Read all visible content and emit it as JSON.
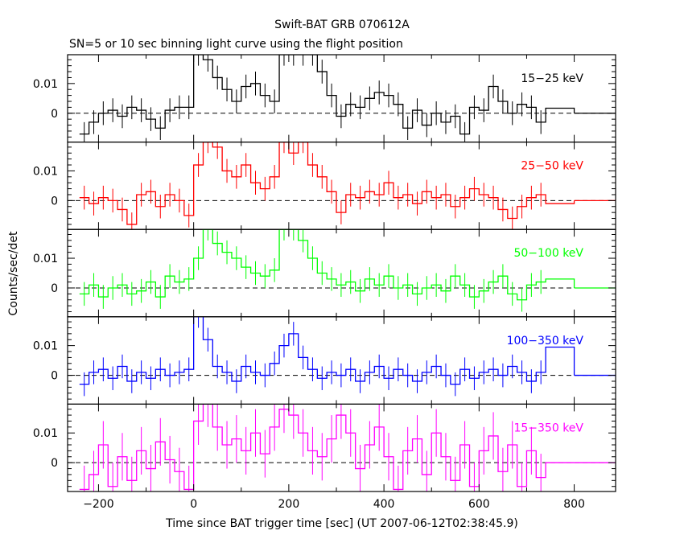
{
  "chart_data": {
    "type": "line",
    "title": "Swift-BAT GRB 070612A",
    "subtitle": "SN=5 or 10 sec binning light curve using the flight position",
    "xlabel": "Time since BAT trigger time [sec] (UT 2007-06-12T02:38:45.9)",
    "ylabel": "Counts/sec/det",
    "xlim": [
      -265,
      887
    ],
    "ylim": [
      -0.0097,
      0.0197
    ],
    "xticks": [
      -200,
      0,
      200,
      400,
      600,
      800
    ],
    "xtick_labels": [
      "−200",
      "0",
      "200",
      "400",
      "600",
      "800"
    ],
    "yticks": [
      0,
      0.01
    ],
    "ytick_labels": [
      "0",
      "0.01"
    ],
    "bin_start": -240,
    "bin_width": 20,
    "series": [
      {
        "name": "15−25 keV",
        "color": "#000000",
        "error": 0.004,
        "values": [
          -0.007,
          -0.003,
          0,
          0.001,
          -0.001,
          0.002,
          0.001,
          -0.002,
          -0.005,
          0.001,
          0.002,
          0.002,
          0.02,
          0.018,
          0.012,
          0.008,
          0.004,
          0.009,
          0.01,
          0.006,
          0.004,
          0.02,
          0.02,
          0.02,
          0.02,
          0.014,
          0.006,
          -0.001,
          0.003,
          0.002,
          0.005,
          0.007,
          0.006,
          0.003,
          -0.005,
          0.001,
          -0.004,
          0,
          -0.003,
          -0.001,
          -0.007,
          0.002,
          0.001,
          0.009,
          0.004,
          0,
          0.003,
          0.002,
          -0.003
        ],
        "tail": {
          "from": 740,
          "to": 800,
          "value": 0.0017
        }
      },
      {
        "name": "25−50 keV",
        "color": "#ff0000",
        "error": 0.004,
        "values": [
          0.001,
          -0.001,
          0.001,
          0,
          -0.003,
          -0.008,
          0.002,
          0.003,
          -0.002,
          0.002,
          0,
          -0.005,
          0.012,
          0.02,
          0.018,
          0.01,
          0.008,
          0.012,
          0.006,
          0.004,
          0.008,
          0.02,
          0.016,
          0.02,
          0.012,
          0.008,
          0.003,
          -0.004,
          0.002,
          0.001,
          0.003,
          0.002,
          0.006,
          0.001,
          0.002,
          -0.001,
          0.003,
          0.001,
          0.002,
          -0.002,
          0.001,
          0.004,
          0.002,
          0.001,
          -0.003,
          -0.006,
          -0.002,
          0.001,
          0.002
        ],
        "tail": {
          "from": 740,
          "to": 800,
          "value": -0.001
        }
      },
      {
        "name": "50−100 keV",
        "color": "#00ff00",
        "error": 0.004,
        "values": [
          -0.002,
          0.001,
          -0.003,
          0,
          0.001,
          -0.002,
          -0.001,
          0.002,
          -0.003,
          0.004,
          0.002,
          0.003,
          0.01,
          0.02,
          0.015,
          0.012,
          0.01,
          0.007,
          0.005,
          0.004,
          0.006,
          0.02,
          0.02,
          0.016,
          0.01,
          0.005,
          0.003,
          0.001,
          0.002,
          -0.001,
          0.003,
          0.001,
          0.004,
          0,
          0.001,
          -0.002,
          0,
          0.001,
          -0.001,
          0.004,
          0.001,
          -0.003,
          -0.001,
          0.002,
          0.004,
          -0.002,
          -0.004,
          0.001,
          0.002
        ],
        "tail": {
          "from": 740,
          "to": 800,
          "value": 0.003
        }
      },
      {
        "name": "100−350 keV",
        "color": "#0000ff",
        "error": 0.004,
        "values": [
          -0.003,
          0.001,
          0.002,
          -0.001,
          0.003,
          -0.002,
          0.001,
          -0.001,
          0.002,
          0,
          0.001,
          0.002,
          0.02,
          0.012,
          0.003,
          0.001,
          -0.002,
          0.003,
          0.001,
          0,
          0.004,
          0.01,
          0.014,
          0.006,
          0.002,
          -0.001,
          0.001,
          0,
          0.002,
          -0.002,
          0.001,
          0.003,
          -0.001,
          0.002,
          0,
          -0.002,
          0.001,
          0.003,
          0,
          -0.003,
          0.002,
          -0.001,
          0.001,
          0.002,
          0,
          0.003,
          0.001,
          -0.002,
          0.001
        ],
        "tail": {
          "from": 740,
          "to": 800,
          "value": 0.0095
        }
      },
      {
        "name": "15−350 keV",
        "color": "#ff00ff",
        "error": 0.008,
        "values": [
          -0.009,
          -0.004,
          0.006,
          -0.008,
          0.002,
          -0.006,
          0.004,
          -0.002,
          0.007,
          0.001,
          -0.003,
          -0.009,
          0.014,
          0.02,
          0.012,
          0.006,
          0.008,
          0.004,
          0.01,
          0.003,
          0.012,
          0.018,
          0.016,
          0.01,
          0.004,
          0.002,
          0.008,
          0.016,
          0.01,
          -0.002,
          0.006,
          0.012,
          0.002,
          -0.009,
          0.004,
          0.008,
          -0.004,
          0.01,
          0.002,
          -0.006,
          0.006,
          -0.008,
          0.004,
          0.009,
          -0.003,
          0.006,
          -0.008,
          0.004,
          -0.005
        ],
        "tail": {
          "from": 740,
          "to": 800,
          "value": 0.0
        }
      }
    ]
  }
}
